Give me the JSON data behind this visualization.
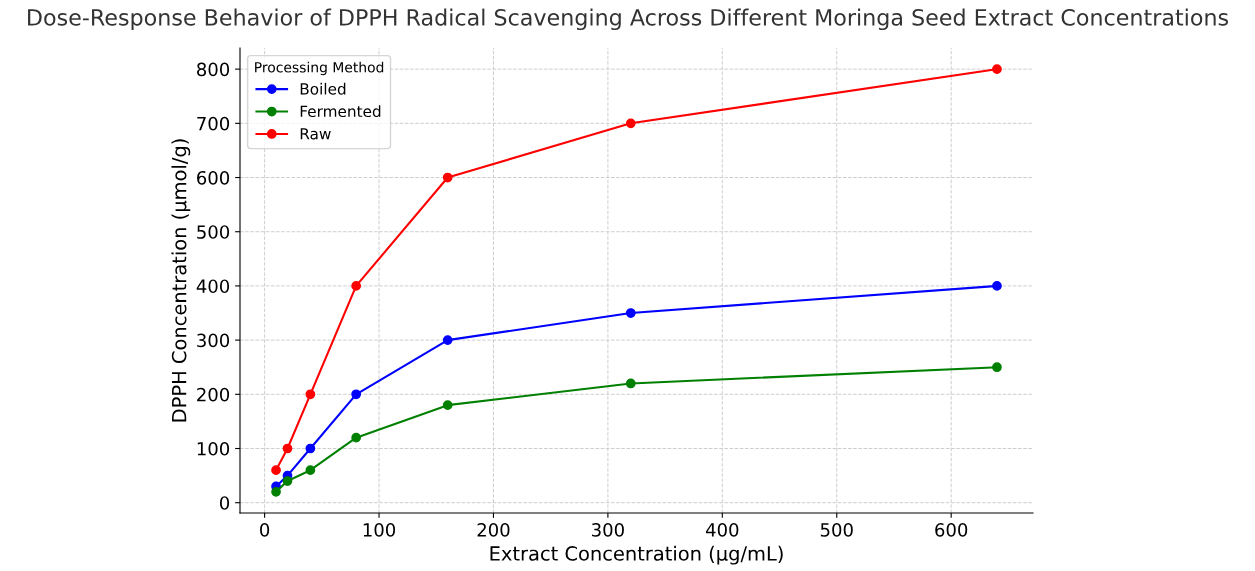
{
  "chart_data": {
    "type": "line",
    "title": "Dose-Response Behavior of DPPH Radical Scavenging Across Different Moringa Seed Extract Concentrations",
    "xlabel": "Extract Concentration (µg/mL)",
    "ylabel": "DPPH Concentration (µmol/g)",
    "legend_title": "Processing Method",
    "x": [
      10,
      20,
      40,
      80,
      160,
      320,
      640
    ],
    "series": [
      {
        "name": "Boiled",
        "color": "#0000ff",
        "values": [
          30,
          50,
          100,
          200,
          300,
          350,
          400
        ]
      },
      {
        "name": "Fermented",
        "color": "#008000",
        "values": [
          20,
          40,
          60,
          120,
          180,
          220,
          250
        ]
      },
      {
        "name": "Raw",
        "color": "#ff0000",
        "values": [
          60,
          100,
          200,
          400,
          600,
          700,
          800
        ]
      }
    ],
    "xlim": [
      -21.5,
      671.5
    ],
    "xticks": [
      0,
      100,
      200,
      300,
      400,
      500,
      600
    ],
    "ylim": [
      -19,
      839
    ],
    "yticks": [
      0,
      100,
      200,
      300,
      400,
      500,
      600,
      700,
      800
    ],
    "grid": true,
    "legend": "top left",
    "marker": "circle",
    "line_style": "solid"
  }
}
